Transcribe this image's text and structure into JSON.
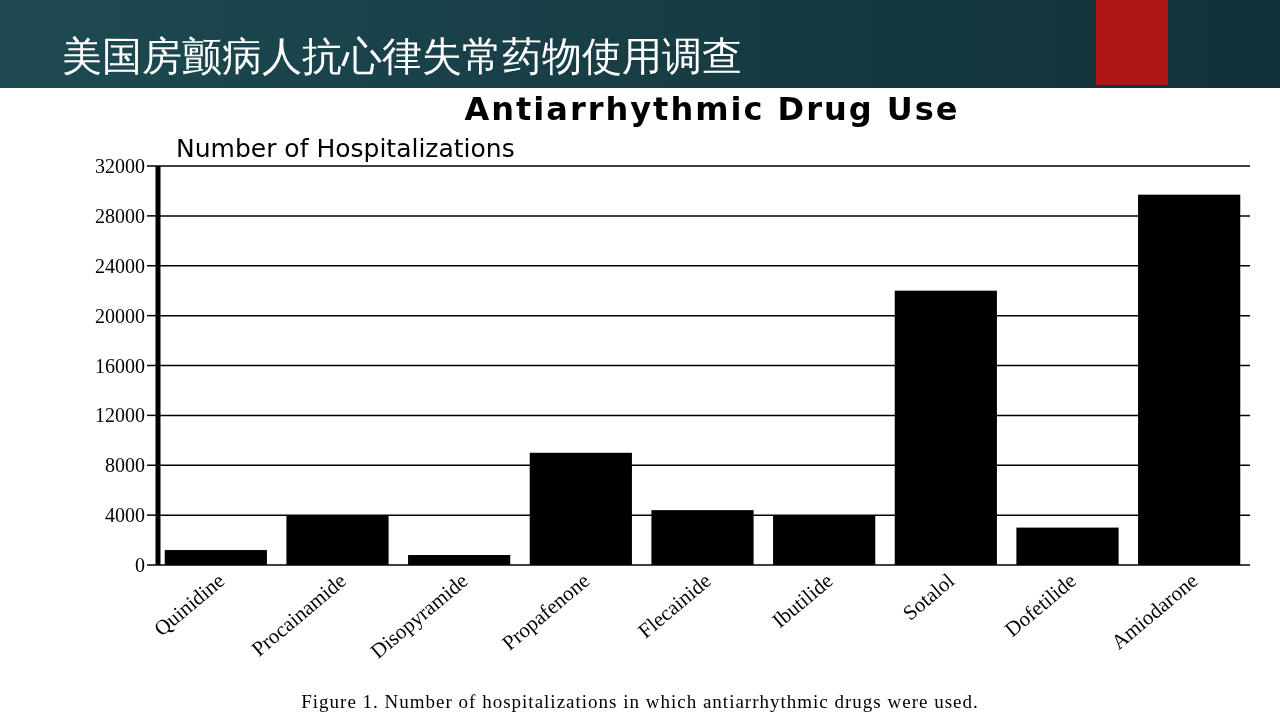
{
  "chart_data": {
    "type": "bar",
    "title": "美国房颤病人抗心律失常药物使用调查",
    "subtitle": "Antiarrhythmic Drug Use",
    "ylabel": "Number of Hospitalizations",
    "categories": [
      "Quinidine",
      "Procainamide",
      "Disopyramide",
      "Propafenone",
      "Flecainide",
      "Ibutilide",
      "Sotalol",
      "Dofetilide",
      "Amiodarone"
    ],
    "values": [
      1200,
      4000,
      800,
      9000,
      4400,
      4000,
      22000,
      3000,
      29700
    ],
    "color": "#000000",
    "ylim": [
      0,
      32000
    ],
    "yticks": [
      0,
      4000,
      8000,
      12000,
      16000,
      20000,
      24000,
      28000,
      32000
    ],
    "grid": "y",
    "annotations": [
      "Figure 1. Number of hospitalizations in which antiarrhythmic drugs were used."
    ]
  }
}
